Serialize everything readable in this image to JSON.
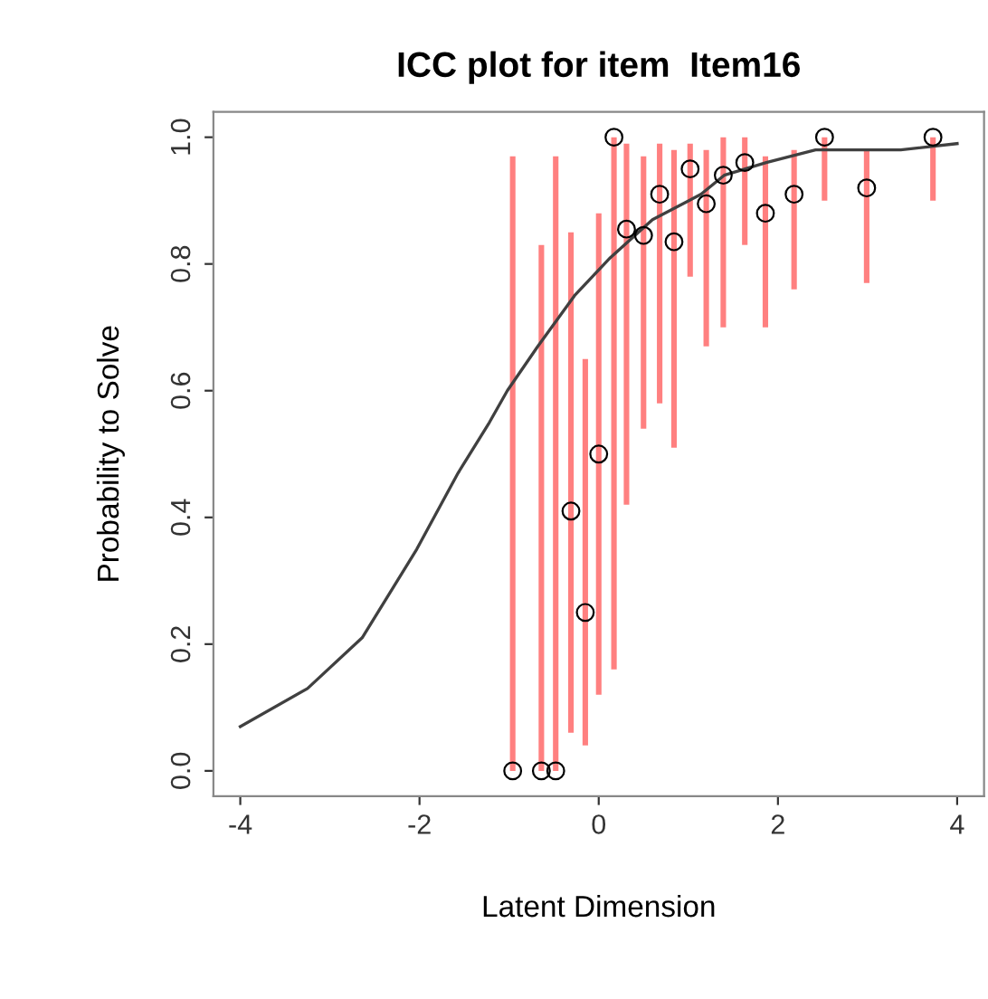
{
  "chart_data": {
    "type": "scatter",
    "title": "ICC plot for item  Item16",
    "xlabel": "Latent Dimension",
    "ylabel": "Probability to Solve",
    "xlim": [
      -4.3,
      4.3
    ],
    "ylim": [
      -0.04,
      1.04
    ],
    "xticks": [
      -4,
      -2,
      0,
      2,
      4
    ],
    "yticks": [
      {
        "value": 0,
        "label": "0.0"
      },
      {
        "value": 0.2,
        "label": "0.2"
      },
      {
        "value": 0.4,
        "label": "0.4"
      },
      {
        "value": 0.6,
        "label": "0.6"
      },
      {
        "value": 0.8,
        "label": "0.8"
      },
      {
        "value": 1,
        "label": "1.0"
      }
    ],
    "grid": false,
    "legend": false,
    "marker": "circle",
    "series": [
      {
        "type": "line",
        "color": "#404040",
        "line_style": "solid",
        "marker": "none",
        "x": [
          -4,
          -3.25,
          -2.64,
          -2.03,
          -1.57,
          -1.22,
          -1.02,
          -0.68,
          -0.27,
          0.13,
          0.6,
          1.14,
          1.4,
          1.87,
          2.42,
          3.37,
          4
        ],
        "values": [
          0.07,
          0.13,
          0.21,
          0.35,
          0.47,
          0.55,
          0.6,
          0.67,
          0.75,
          0.81,
          0.87,
          0.91,
          0.94,
          0.96,
          0.98,
          0.98,
          0.99
        ]
      },
      {
        "color": "#000000",
        "x": [
          -0.96,
          -0.64,
          -0.48,
          -0.31,
          -0.15,
          0,
          0.17,
          0.31,
          0.5,
          0.68,
          0.84,
          1.02,
          1.2,
          1.39,
          1.63,
          1.86,
          2.18,
          2.52,
          2.99,
          3.73
        ],
        "values": [
          0,
          0,
          0,
          0.41,
          0.25,
          0.5,
          1,
          0.855,
          0.845,
          0.91,
          0.835,
          0.95,
          0.895,
          0.94,
          0.96,
          0.88,
          0.91,
          1,
          0.92,
          1
        ],
        "errors": [
          [
            0,
            0.97
          ],
          [
            0,
            0.83
          ],
          [
            0,
            0.97
          ],
          [
            0.06,
            0.85
          ],
          [
            0.04,
            0.65
          ],
          [
            0.12,
            0.88
          ],
          [
            0.16,
            1
          ],
          [
            0.42,
            0.99
          ],
          [
            0.54,
            0.97
          ],
          [
            0.58,
            0.99
          ],
          [
            0.51,
            0.98
          ],
          [
            0.78,
            0.99
          ],
          [
            0.67,
            0.98
          ],
          [
            0.7,
            1
          ],
          [
            0.83,
            1
          ],
          [
            0.7,
            0.97
          ],
          [
            0.76,
            0.98
          ],
          [
            0.9,
            1
          ],
          [
            0.77,
            0.98
          ],
          [
            0.9,
            1
          ]
        ]
      }
    ]
  }
}
